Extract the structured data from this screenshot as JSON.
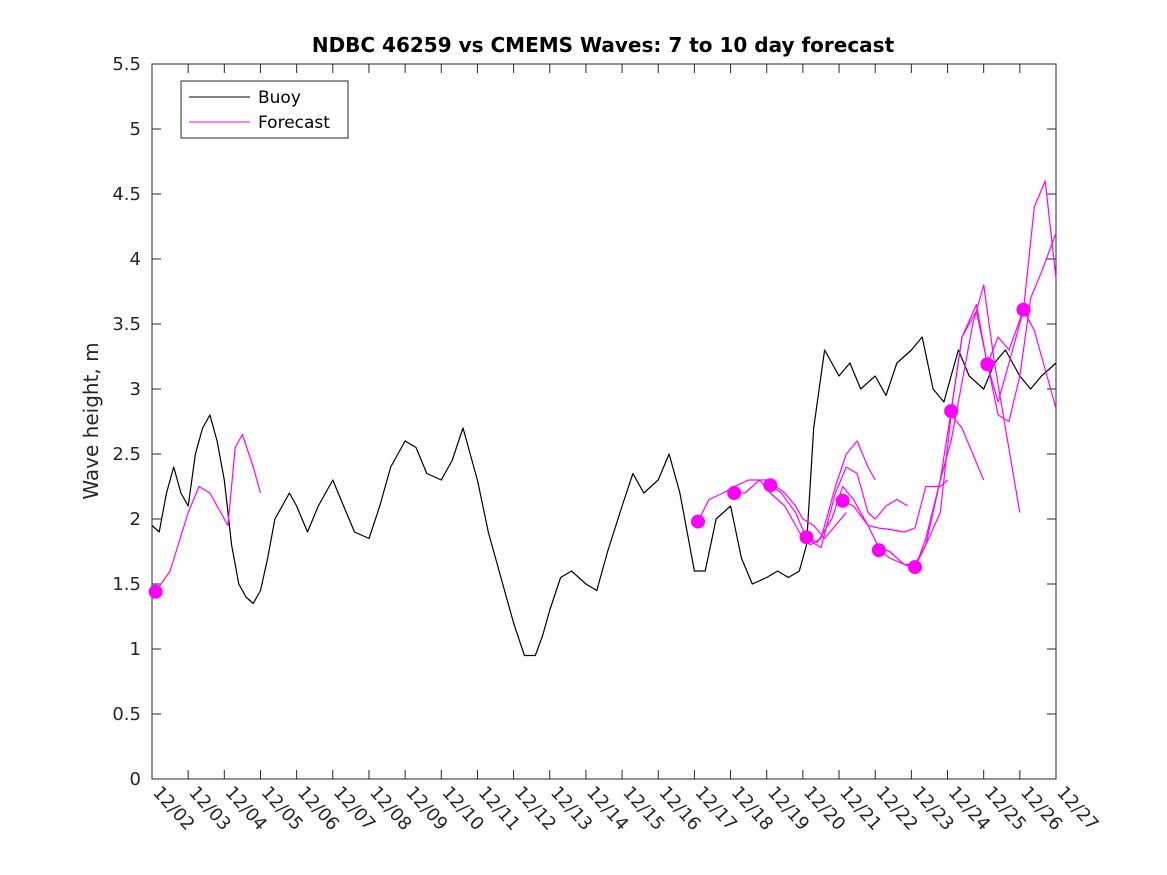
{
  "chart_data": {
    "type": "line",
    "title": "NDBC 46259 vs CMEMS Waves: 7 to 10 day forecast",
    "xlabel": "",
    "ylabel": "Wave height, m",
    "x_tick_labels": [
      "12/02",
      "12/03",
      "12/04",
      "12/05",
      "12/06",
      "12/07",
      "12/08",
      "12/09",
      "12/10",
      "12/11",
      "12/12",
      "12/13",
      "12/14",
      "12/15",
      "12/16",
      "12/17",
      "12/18",
      "12/19",
      "12/20",
      "12/21",
      "12/22",
      "12/23",
      "12/24",
      "12/25",
      "12/26",
      "12/27"
    ],
    "xlim": [
      0,
      25
    ],
    "ylim": [
      0,
      5.5
    ],
    "y_ticks": [
      "0",
      "0.5",
      "1",
      "1.5",
      "2",
      "2.5",
      "3",
      "3.5",
      "4",
      "4.5",
      "5",
      "5.5"
    ],
    "grid": false,
    "legend": {
      "position": "top-left",
      "entries": [
        {
          "name": "Buoy",
          "color": "#000000"
        },
        {
          "name": "Forecast",
          "color": "#ff00ff"
        }
      ]
    },
    "series": [
      {
        "name": "Buoy",
        "color": "#000000",
        "x": [
          0,
          0.2,
          0.4,
          0.6,
          0.8,
          1.0,
          1.2,
          1.4,
          1.6,
          1.8,
          2.0,
          2.2,
          2.4,
          2.6,
          2.8,
          3.0,
          3.2,
          3.4,
          3.6,
          3.8,
          4.0,
          4.3,
          4.6,
          5.0,
          5.3,
          5.6,
          6.0,
          6.3,
          6.6,
          7.0,
          7.3,
          7.6,
          8.0,
          8.3,
          8.6,
          9.0,
          9.3,
          9.6,
          10.0,
          10.3,
          10.6,
          10.8,
          11.0,
          11.3,
          11.6,
          12.0,
          12.3,
          12.6,
          13.0,
          13.3,
          13.6,
          14.0,
          14.3,
          14.6,
          15.0,
          15.3,
          15.6,
          16.0,
          16.3,
          16.6,
          17.0,
          17.3,
          17.6,
          17.9,
          18.1,
          18.3,
          18.6,
          19.0,
          19.3,
          19.6,
          20.0,
          20.3,
          20.6,
          21.0,
          21.3,
          21.6,
          21.9,
          22.1,
          22.3,
          22.6,
          23.0,
          23.3,
          23.6,
          24.0,
          24.3,
          24.6,
          25.0
        ],
        "values": [
          1.95,
          1.9,
          2.2,
          2.4,
          2.2,
          2.1,
          2.5,
          2.7,
          2.8,
          2.6,
          2.3,
          1.8,
          1.5,
          1.4,
          1.35,
          1.45,
          1.7,
          2.0,
          2.1,
          2.2,
          2.1,
          1.9,
          2.1,
          2.3,
          2.1,
          1.9,
          1.85,
          2.1,
          2.4,
          2.6,
          2.55,
          2.35,
          2.3,
          2.45,
          2.7,
          2.3,
          1.9,
          1.6,
          1.2,
          0.95,
          0.95,
          1.1,
          1.3,
          1.55,
          1.6,
          1.5,
          1.45,
          1.75,
          2.1,
          2.35,
          2.2,
          2.3,
          2.5,
          2.2,
          1.6,
          1.6,
          2.0,
          2.1,
          1.7,
          1.5,
          1.55,
          1.6,
          1.55,
          1.6,
          1.8,
          2.7,
          3.3,
          3.1,
          3.2,
          3.0,
          3.1,
          2.95,
          3.2,
          3.3,
          3.4,
          3.0,
          2.9,
          3.1,
          3.3,
          3.1,
          3.0,
          3.2,
          3.3,
          3.1,
          3.0,
          3.1,
          3.2
        ]
      },
      {
        "name": "Forecast run 12/02",
        "color": "#ff00ff",
        "x": [
          0.1,
          0.5,
          1.0,
          1.3,
          1.6,
          2.0,
          2.1,
          2.3,
          2.5,
          2.8,
          3.0
        ],
        "values": [
          1.44,
          1.6,
          2.05,
          2.25,
          2.2,
          2.0,
          1.95,
          2.55,
          2.65,
          2.4,
          2.2
        ]
      },
      {
        "name": "Forecast run 12/17",
        "color": "#ff00ff",
        "x": [
          15.1,
          15.4,
          15.8,
          16.1,
          16.5,
          17.0,
          17.5,
          17.8,
          18.0,
          18.3,
          18.6,
          18.9,
          19.2
        ],
        "values": [
          1.98,
          2.15,
          2.2,
          2.25,
          2.3,
          2.3,
          2.2,
          2.1,
          2.0,
          1.95,
          1.85,
          1.95,
          2.05
        ]
      },
      {
        "name": "Forecast run 12/18",
        "color": "#ff00ff",
        "x": [
          16.1,
          16.4,
          16.8,
          17.1,
          17.5,
          17.9,
          18.2,
          18.5,
          18.9,
          19.2,
          19.5,
          19.8,
          20.0
        ],
        "values": [
          2.2,
          2.2,
          2.3,
          2.2,
          2.1,
          1.9,
          1.8,
          1.85,
          2.25,
          2.5,
          2.6,
          2.4,
          2.3
        ]
      },
      {
        "name": "Forecast run 12/19",
        "color": "#ff00ff",
        "x": [
          17.1,
          17.4,
          17.8,
          18.1,
          18.5,
          18.9,
          19.2,
          19.5,
          19.8,
          20.0,
          20.3,
          20.6,
          20.9
        ],
        "values": [
          2.26,
          2.2,
          2.05,
          1.85,
          1.78,
          2.2,
          2.4,
          2.35,
          2.05,
          2.0,
          2.1,
          2.15,
          2.1
        ]
      },
      {
        "name": "Forecast run 12/20",
        "color": "#ff00ff",
        "x": [
          18.1,
          18.4,
          18.8,
          19.1,
          19.4,
          19.8,
          20.1,
          20.4,
          20.8,
          21.1,
          21.4,
          21.8,
          22.0
        ],
        "values": [
          1.86,
          1.82,
          2.0,
          2.25,
          2.15,
          1.95,
          1.93,
          1.92,
          1.9,
          1.93,
          2.25,
          2.25,
          2.3
        ]
      },
      {
        "name": "Forecast run 12/21",
        "color": "#ff00ff",
        "x": [
          19.1,
          19.4,
          19.8,
          20.1,
          20.4,
          20.8,
          21.1,
          21.4,
          21.8,
          22.1,
          22.4,
          22.7,
          23.0
        ],
        "values": [
          2.14,
          2.1,
          1.95,
          1.78,
          1.75,
          1.65,
          1.65,
          1.8,
          2.05,
          2.8,
          2.7,
          2.5,
          2.3
        ]
      },
      {
        "name": "Forecast run 12/22",
        "color": "#ff00ff",
        "x": [
          20.1,
          20.4,
          20.8,
          21.1,
          21.4,
          21.8,
          22.1,
          22.4,
          22.7,
          23.0,
          23.3,
          23.6,
          24.0
        ],
        "values": [
          1.76,
          1.7,
          1.65,
          1.62,
          1.85,
          2.3,
          2.6,
          3.05,
          3.5,
          3.8,
          3.2,
          2.7,
          2.05
        ]
      },
      {
        "name": "Forecast run 12/23",
        "color": "#ff00ff",
        "x": [
          21.1,
          21.4,
          21.8,
          22.1,
          22.4,
          22.8,
          23.1,
          23.4,
          23.7,
          24.0,
          24.3,
          24.6,
          25.0
        ],
        "values": [
          1.63,
          1.8,
          2.3,
          2.83,
          3.4,
          3.6,
          3.2,
          2.8,
          2.75,
          3.1,
          3.7,
          3.9,
          4.2
        ]
      },
      {
        "name": "Forecast run 12/24",
        "color": "#ff00ff",
        "x": [
          22.1,
          22.4,
          22.8,
          23.1,
          23.4,
          23.8,
          24.1,
          24.4,
          24.7,
          25.0
        ],
        "values": [
          2.83,
          3.4,
          3.65,
          3.19,
          2.9,
          3.3,
          3.61,
          4.4,
          4.6,
          3.85
        ]
      },
      {
        "name": "Forecast run 12/25",
        "color": "#ff00ff",
        "x": [
          23.1,
          23.4,
          23.7,
          24.1,
          24.4,
          24.8,
          25.0
        ],
        "values": [
          3.19,
          3.4,
          3.3,
          3.61,
          3.45,
          3.05,
          2.85
        ]
      },
      {
        "name": "Forecast run 12/26",
        "color": "#ff00ff",
        "x": [
          24.1,
          24.3
        ],
        "values": [
          3.61,
          3.5
        ]
      }
    ],
    "markers": {
      "color": "#ff00ff",
      "x": [
        0.1,
        15.1,
        16.1,
        17.1,
        18.1,
        19.1,
        20.1,
        21.1,
        22.1,
        23.1,
        24.1
      ],
      "values": [
        1.44,
        1.98,
        2.2,
        2.26,
        1.86,
        2.14,
        1.76,
        1.63,
        2.83,
        3.19,
        3.61
      ]
    }
  }
}
